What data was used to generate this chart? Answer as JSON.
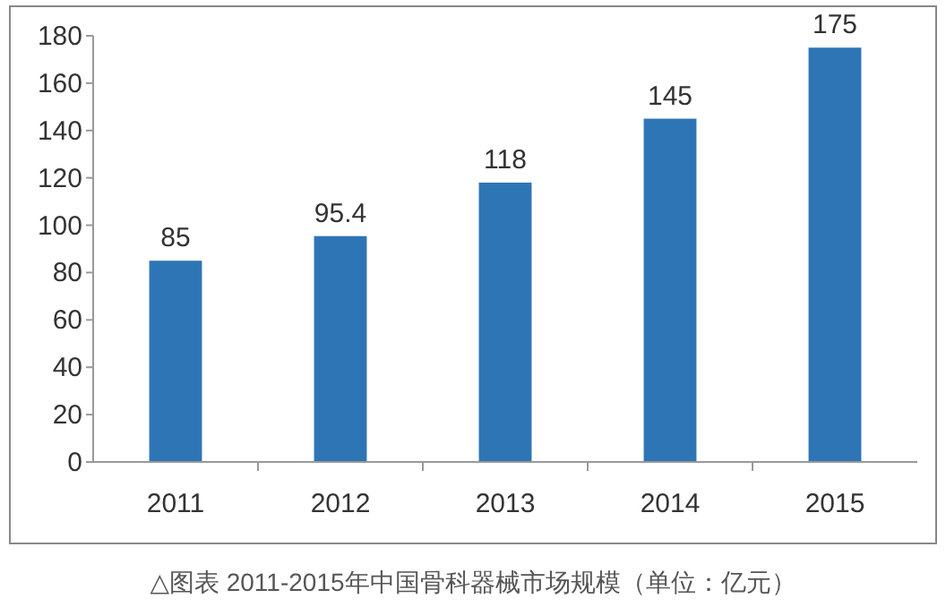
{
  "chart_data": {
    "type": "bar",
    "categories": [
      "2011",
      "2012",
      "2013",
      "2014",
      "2015"
    ],
    "values": [
      85,
      95.4,
      118,
      145,
      175
    ],
    "color": "#2e75b6",
    "ylim": [
      0,
      180
    ],
    "yticks": [
      0,
      20,
      40,
      60,
      80,
      100,
      120,
      140,
      160,
      180
    ],
    "data_labels": true,
    "annotations": [
      "△图表 2011-2015年中国骨科器械市场规模（单位：亿元）"
    ]
  }
}
